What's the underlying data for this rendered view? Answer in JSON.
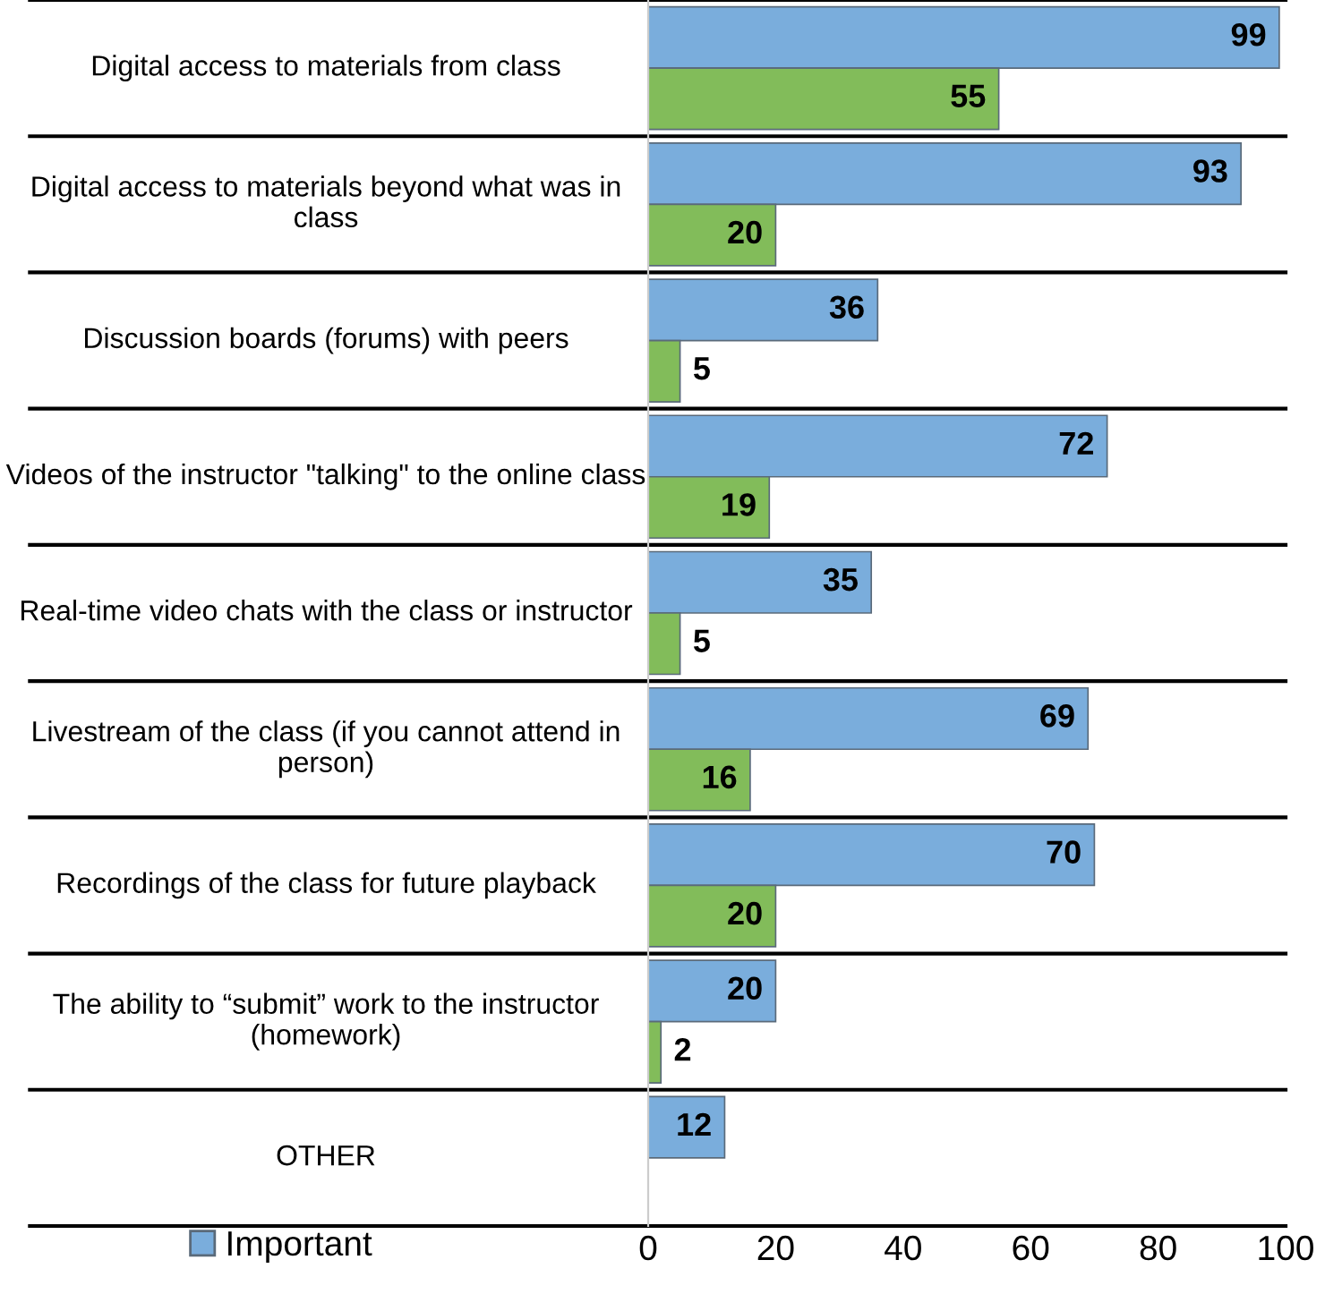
{
  "chart_data": {
    "type": "bar",
    "orientation": "horizontal",
    "categories": [
      "Digital access to materials from class",
      "Digital access to materials beyond what was in class",
      "Discussion boards (forums) with peers",
      "Videos of the instructor \"talking\" to the online class",
      "Real-time video chats with the class or instructor",
      "Livestream of the class (if you cannot attend in person)",
      "Recordings of the class for future playback",
      "The ability to “submit” work to the instructor (homework)",
      "OTHER"
    ],
    "series": [
      {
        "name": "Important",
        "color": "#7aaddc",
        "values": [
          99,
          93,
          36,
          72,
          35,
          69,
          70,
          20,
          12
        ]
      },
      {
        "color": "#82bc5a",
        "values": [
          55,
          20,
          5,
          19,
          5,
          16,
          20,
          2,
          null
        ]
      }
    ],
    "xlim": [
      0,
      100
    ],
    "xticks": [
      0,
      20,
      40,
      60,
      80,
      100
    ],
    "data_labels": true,
    "legend": "bottom left",
    "grid": "y"
  }
}
